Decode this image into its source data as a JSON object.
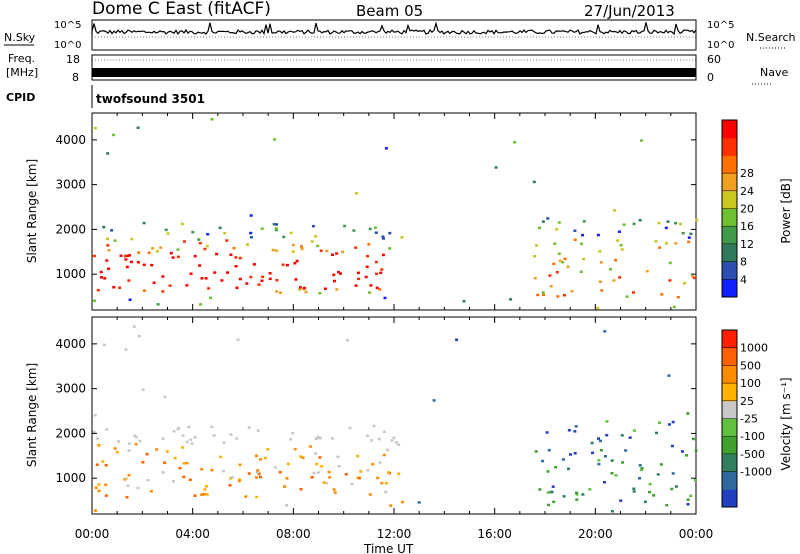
{
  "header": {
    "station": "Dome C East (fitACF)",
    "beam": "Beam 05",
    "date": "27/Jun/2013"
  },
  "top_panels": {
    "nsky_label": "N.Sky",
    "nsky_hi": "10^5",
    "nsky_lo": "10^0",
    "nsearch_label": "N.Search",
    "nsearch_hi": "10^5",
    "nsearch_lo": "10^0",
    "freq_label_1": "Freq.",
    "freq_label_2": "[MHz]",
    "freq_hi": "18",
    "freq_lo": "8",
    "nave_label": "Nave",
    "nave_hi": "60",
    "nave_lo": "0",
    "cpid_label": "CPID",
    "cpid_value": "twofsound 3501"
  },
  "x_axis": {
    "label": "Time UT",
    "ticks": [
      "00:00",
      "04:00",
      "08:00",
      "12:00",
      "16:00",
      "20:00",
      "00:00"
    ]
  },
  "chart_data": [
    {
      "type": "heatmap",
      "ylabel": "Slant Range [km]",
      "y_ticks": [
        1000,
        2000,
        3000,
        4000
      ],
      "ylim": [
        200,
        4600
      ],
      "xlim_hours": [
        0,
        24
      ],
      "colorbar_label": "Power [dB]",
      "colorbar_ticks": [
        "4",
        "8",
        "12",
        "16",
        "20",
        "24",
        "28"
      ],
      "colorbar_colors": [
        "#1020ff",
        "#2a4fb0",
        "#2f7a5a",
        "#3f9a4a",
        "#6fc030",
        "#c8c820",
        "#f0a020",
        "#ff7000",
        "#ff3000",
        "#ff0000"
      ]
    },
    {
      "type": "heatmap",
      "ylabel": "Slant Range [km]",
      "y_ticks": [
        1000,
        2000,
        3000,
        4000
      ],
      "ylim": [
        200,
        4600
      ],
      "xlim_hours": [
        0,
        24
      ],
      "colorbar_label": "Velocity [m s^-1]",
      "colorbar_ticks": [
        "1000",
        "500",
        "100",
        "25",
        "-25",
        "-100",
        "-500",
        "-1000"
      ],
      "colorbar_colors": [
        "#2040c0",
        "#3068a0",
        "#308060",
        "#40a030",
        "#60c040",
        "#c8c8c8",
        "#ffb000",
        "#ff8c00",
        "#ff6000",
        "#ff2000"
      ]
    }
  ]
}
